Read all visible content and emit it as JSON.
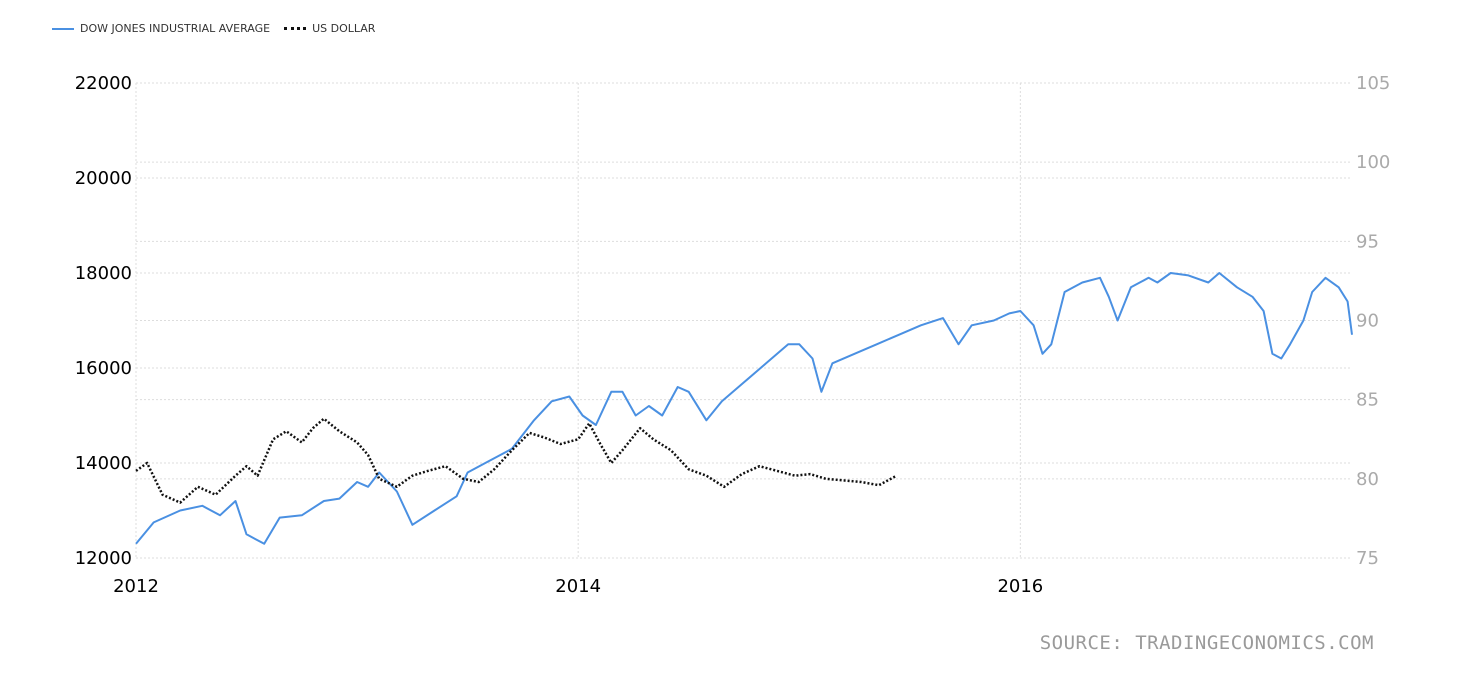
{
  "legend": {
    "series1": "DOW JONES INDUSTRIAL AVERAGE",
    "series2": "US DOLLAR"
  },
  "source": "SOURCE: TRADINGECONOMICS.COM",
  "colors": {
    "dow": "#4a90e2",
    "usd": "#111111",
    "grid": "#dddddd",
    "right_axis": "#aaaaaa"
  },
  "chart_data": {
    "type": "line",
    "x_ticks": [
      "2012",
      "2014",
      "2016"
    ],
    "left_axis": {
      "ylim": [
        12000,
        22000
      ],
      "ticks": [
        "12000",
        "14000",
        "16000",
        "18000",
        "20000",
        "22000"
      ]
    },
    "right_axis": {
      "ylim": [
        75,
        105
      ],
      "ticks": [
        "75",
        "80",
        "85",
        "90",
        "95",
        "100",
        "105"
      ]
    },
    "xlim": [
      2012.0,
      2017.5
    ],
    "grid": true,
    "legend_placement": "top-left",
    "series": [
      {
        "name": "DOW JONES INDUSTRIAL AVERAGE",
        "axis": "left",
        "points": [
          [
            2012.0,
            12300
          ],
          [
            2012.08,
            12750
          ],
          [
            2012.2,
            13000
          ],
          [
            2012.3,
            13100
          ],
          [
            2012.38,
            12900
          ],
          [
            2012.45,
            13200
          ],
          [
            2012.5,
            12500
          ],
          [
            2012.58,
            12300
          ],
          [
            2012.65,
            12850
          ],
          [
            2012.75,
            12900
          ],
          [
            2012.85,
            13200
          ],
          [
            2012.92,
            13250
          ],
          [
            2013.0,
            13600
          ],
          [
            2013.05,
            13500
          ],
          [
            2013.1,
            13800
          ],
          [
            2013.18,
            13400
          ],
          [
            2013.25,
            12700
          ],
          [
            2013.35,
            13000
          ],
          [
            2013.45,
            13300
          ],
          [
            2013.5,
            13800
          ],
          [
            2013.58,
            14000
          ],
          [
            2013.7,
            14300
          ],
          [
            2013.8,
            14900
          ],
          [
            2013.88,
            15300
          ],
          [
            2013.96,
            15400
          ],
          [
            2014.02,
            15000
          ],
          [
            2014.08,
            14800
          ],
          [
            2014.15,
            15500
          ],
          [
            2014.2,
            15500
          ],
          [
            2014.26,
            15000
          ],
          [
            2014.32,
            15200
          ],
          [
            2014.38,
            15000
          ],
          [
            2014.45,
            15600
          ],
          [
            2014.5,
            15500
          ],
          [
            2014.58,
            14900
          ],
          [
            2014.65,
            15300
          ],
          [
            2014.75,
            15700
          ],
          [
            2014.85,
            16100
          ],
          [
            2014.95,
            16500
          ],
          [
            2015.0,
            16500
          ],
          [
            2015.06,
            16200
          ],
          [
            2015.1,
            15500
          ],
          [
            2015.15,
            16100
          ],
          [
            2015.25,
            16300
          ],
          [
            2015.35,
            16500
          ],
          [
            2015.45,
            16700
          ],
          [
            2015.55,
            16900
          ],
          [
            2015.65,
            17050
          ],
          [
            2015.72,
            16500
          ],
          [
            2015.78,
            16900
          ],
          [
            2015.88,
            17000
          ],
          [
            2015.95,
            17150
          ],
          [
            2016.0,
            17200
          ],
          [
            2016.06,
            16900
          ],
          [
            2016.1,
            16300
          ],
          [
            2016.14,
            16500
          ],
          [
            2016.2,
            17600
          ],
          [
            2016.28,
            17800
          ],
          [
            2016.36,
            17900
          ],
          [
            2016.4,
            17500
          ],
          [
            2016.44,
            17000
          ],
          [
            2016.5,
            17700
          ],
          [
            2016.58,
            17900
          ],
          [
            2016.62,
            17800
          ],
          [
            2016.68,
            18000
          ],
          [
            2016.76,
            17950
          ],
          [
            2016.85,
            17800
          ],
          [
            2016.9,
            18000
          ],
          [
            2016.98,
            17700
          ],
          [
            2017.05,
            17500
          ],
          [
            2017.1,
            17200
          ],
          [
            2017.14,
            16300
          ],
          [
            2017.18,
            16200
          ],
          [
            2017.22,
            16500
          ],
          [
            2017.28,
            17000
          ],
          [
            2017.32,
            17600
          ],
          [
            2017.38,
            17900
          ],
          [
            2017.44,
            17700
          ],
          [
            2017.48,
            17400
          ],
          [
            2017.5,
            16700
          ]
        ]
      },
      {
        "name": "US DOLLAR",
        "axis": "right",
        "points": [
          [
            2012.0,
            80.5
          ],
          [
            2012.05,
            81
          ],
          [
            2012.12,
            79
          ],
          [
            2012.2,
            78.5
          ],
          [
            2012.28,
            79.5
          ],
          [
            2012.36,
            79
          ],
          [
            2012.45,
            80.2
          ],
          [
            2012.5,
            80.8
          ],
          [
            2012.55,
            80.2
          ],
          [
            2012.62,
            82.5
          ],
          [
            2012.68,
            83
          ],
          [
            2012.75,
            82.3
          ],
          [
            2012.8,
            83.2
          ],
          [
            2012.85,
            83.8
          ],
          [
            2012.92,
            83
          ],
          [
            2013.0,
            82.3
          ],
          [
            2013.05,
            81.5
          ],
          [
            2013.1,
            80
          ],
          [
            2013.18,
            79.5
          ],
          [
            2013.25,
            80.2
          ],
          [
            2013.32,
            80.5
          ],
          [
            2013.4,
            80.8
          ],
          [
            2013.48,
            80
          ],
          [
            2013.55,
            79.8
          ],
          [
            2013.62,
            80.6
          ],
          [
            2013.7,
            81.8
          ],
          [
            2013.78,
            82.9
          ],
          [
            2013.85,
            82.6
          ],
          [
            2013.92,
            82.2
          ],
          [
            2014.0,
            82.5
          ],
          [
            2014.05,
            83.5
          ],
          [
            2014.1,
            82.2
          ],
          [
            2014.15,
            81
          ],
          [
            2014.2,
            81.8
          ],
          [
            2014.28,
            83.2
          ],
          [
            2014.34,
            82.5
          ],
          [
            2014.42,
            81.8
          ],
          [
            2014.5,
            80.6
          ],
          [
            2014.58,
            80.2
          ],
          [
            2014.66,
            79.5
          ],
          [
            2014.74,
            80.3
          ],
          [
            2014.82,
            80.8
          ],
          [
            2014.9,
            80.5
          ],
          [
            2014.98,
            80.2
          ],
          [
            2015.05,
            80.3
          ],
          [
            2015.12,
            80.0
          ],
          [
            2015.2,
            79.9
          ],
          [
            2015.28,
            79.8
          ],
          [
            2015.36,
            79.6
          ],
          [
            2015.44,
            80.2
          ]
        ]
      }
    ]
  }
}
